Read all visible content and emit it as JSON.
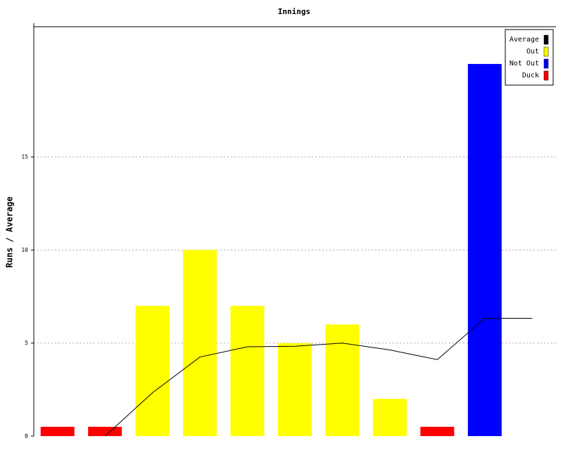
{
  "chart_data": {
    "type": "bar",
    "title": "Innings",
    "y_label": "Runs / Average",
    "categories": [
      null,
      null,
      null,
      null,
      null,
      null,
      null,
      null,
      null,
      null,
      null
    ],
    "series": [
      {
        "name": "Average",
        "type": "line",
        "color": "#000000",
        "values": [
          null,
          0,
          2.33,
          4.25,
          4.8,
          4.83,
          5,
          4.63,
          4.11,
          6.33,
          6.33
        ]
      },
      {
        "name": "Out",
        "color": "#ffff00",
        "values": [
          null,
          null,
          7,
          10,
          7,
          5,
          6,
          2,
          null,
          null,
          null
        ]
      },
      {
        "name": "Not Out",
        "color": "#0000ff",
        "values": [
          null,
          null,
          null,
          null,
          null,
          null,
          null,
          null,
          null,
          20,
          null
        ]
      },
      {
        "name": "Duck",
        "color": "#ff0000",
        "values": [
          0.5,
          0.5,
          null,
          null,
          null,
          null,
          null,
          null,
          0.5,
          null,
          null
        ]
      }
    ],
    "ylim": [
      0,
      22
    ],
    "yticks": [
      0,
      5,
      10,
      15
    ],
    "grid": true,
    "legend": "top-right"
  }
}
